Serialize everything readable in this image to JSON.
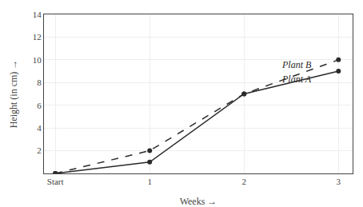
{
  "chart_data": {
    "type": "line",
    "x": [
      0,
      1,
      2,
      3
    ],
    "series": [
      {
        "color": "#2a2a2a",
        "line_style": "solid",
        "marker": "circle",
        "values": [
          0,
          1,
          7,
          9
        ]
      },
      {
        "color": "#2a2a2a",
        "line_style": "dashed",
        "marker": "circle",
        "values": [
          0,
          2,
          7,
          10
        ]
      }
    ],
    "annotations": [
      {
        "text": "Plant B",
        "x": 2.38,
        "y": 8.9
      },
      {
        "text": "Plant A",
        "x": 2.38,
        "y": 7.7
      }
    ],
    "x_label": "Weeks →",
    "y_label": "Height (in cm) →",
    "xlim": [
      -0.12,
      3.15
    ],
    "xticks": [
      {
        "value": 0,
        "label": "Start"
      },
      1,
      2,
      3
    ],
    "ylim": [
      0,
      14
    ],
    "yticks": [
      2,
      4,
      6,
      8,
      10,
      12,
      14
    ],
    "grid": true
  }
}
